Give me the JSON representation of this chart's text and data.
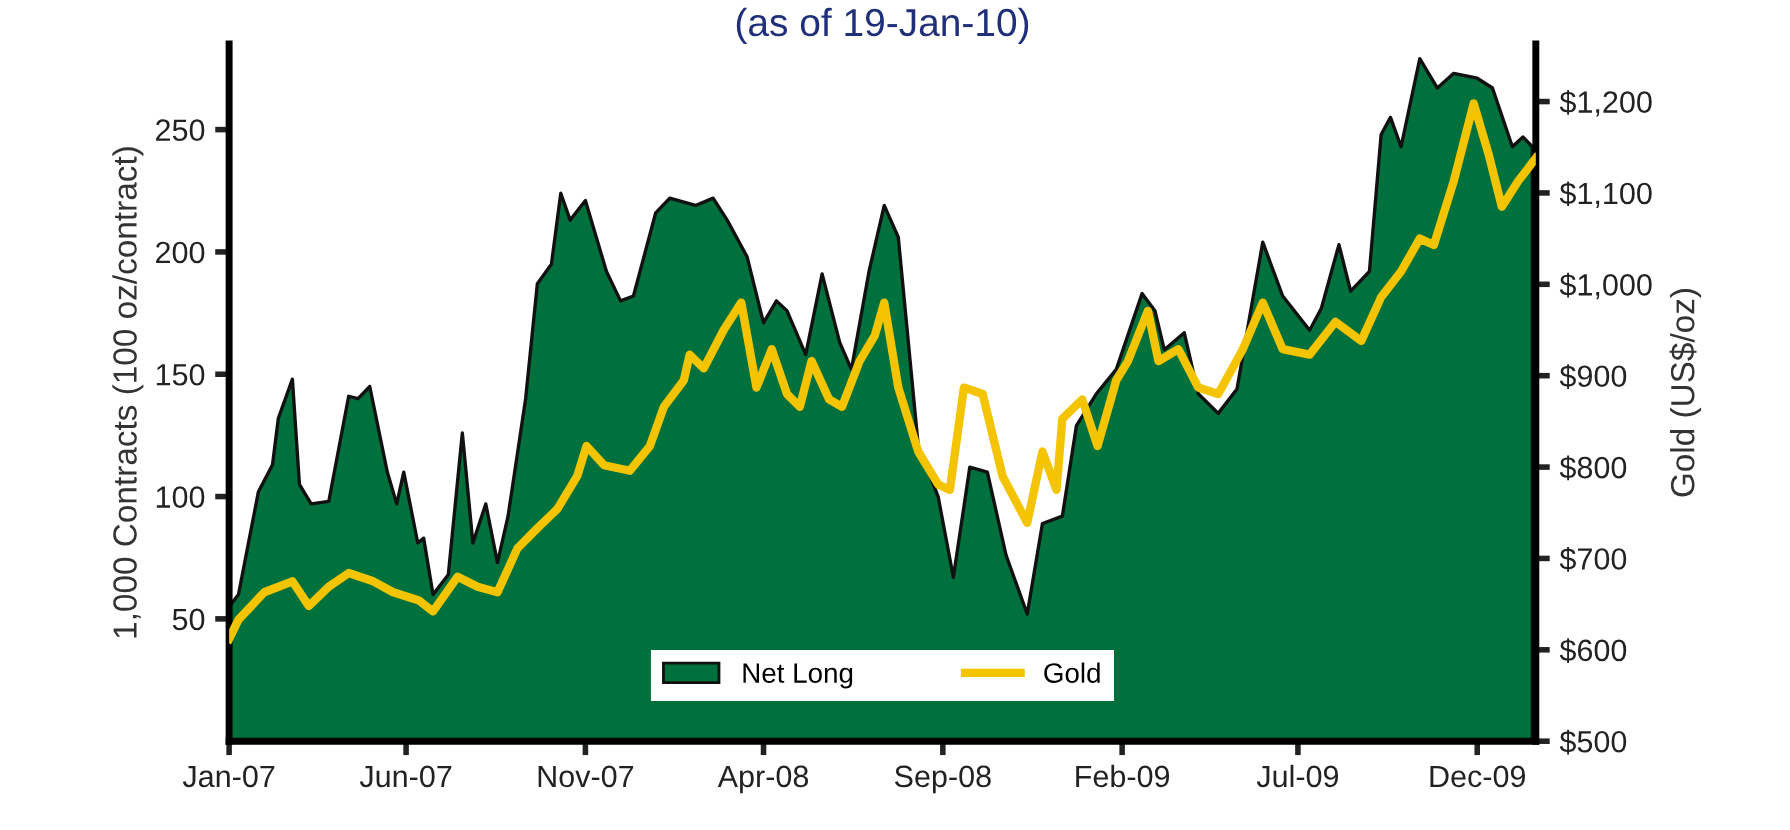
{
  "chart_data": {
    "type": "area",
    "title": "(as of 19-Jan-10)",
    "ylabel": "1,000 Contracts (100 oz/contract)",
    "y2label": "Gold (US$/oz)",
    "ylim": [
      0,
      285
    ],
    "yticks": [
      50,
      100,
      150,
      200,
      250
    ],
    "y2lim": [
      500,
      1263
    ],
    "y2ticks": [
      {
        "value": 500,
        "label": "$500"
      },
      {
        "value": 600,
        "label": "$600"
      },
      {
        "value": 700,
        "label": "$700"
      },
      {
        "value": 800,
        "label": "$800"
      },
      {
        "value": 900,
        "label": "$900"
      },
      {
        "value": 1000,
        "label": "$1,000"
      },
      {
        "value": 1100,
        "label": "$1,100"
      },
      {
        "value": 1200,
        "label": "$1,200"
      }
    ],
    "xlim": [
      "2007-01-01",
      "2010-01-20"
    ],
    "xticks": [
      {
        "value": "2007-01-01",
        "label": "Jan-07"
      },
      {
        "value": "2007-06-01",
        "label": "Jun-07"
      },
      {
        "value": "2007-11-01",
        "label": "Nov-07"
      },
      {
        "value": "2008-04-01",
        "label": "Apr-08"
      },
      {
        "value": "2008-09-01",
        "label": "Sep-08"
      },
      {
        "value": "2009-02-01",
        "label": "Feb-09"
      },
      {
        "value": "2009-07-01",
        "label": "Jul-09"
      },
      {
        "value": "2009-12-01",
        "label": "Dec-09"
      }
    ],
    "legend": "bottom",
    "grid": false,
    "series": [
      {
        "name": "Net Long",
        "color": "#00703c",
        "x": [
          "2007-01-01",
          "2007-01-09",
          "2007-01-26",
          "2007-02-07",
          "2007-02-12",
          "2007-02-24",
          "2007-03-02",
          "2007-03-12",
          "2007-03-27",
          "2007-04-13",
          "2007-04-21",
          "2007-05-01",
          "2007-05-16",
          "2007-05-24",
          "2007-05-30",
          "2007-06-11",
          "2007-06-16",
          "2007-06-24",
          "2007-07-07",
          "2007-07-19",
          "2007-07-28",
          "2007-08-08",
          "2007-08-18",
          "2007-08-27",
          "2007-09-11",
          "2007-09-21",
          "2007-10-03",
          "2007-10-11",
          "2007-10-19",
          "2007-11-01",
          "2007-11-19",
          "2007-12-01",
          "2007-12-12",
          "2007-12-31",
          "2008-01-12",
          "2008-02-03",
          "2008-02-18",
          "2008-03-01",
          "2008-03-18",
          "2008-04-01",
          "2008-04-12",
          "2008-04-21",
          "2008-05-07",
          "2008-05-21",
          "2008-06-05",
          "2008-06-15",
          "2008-06-30",
          "2008-07-13",
          "2008-07-25",
          "2008-08-11",
          "2008-08-28",
          "2008-09-10",
          "2008-09-24",
          "2008-10-09",
          "2008-10-25",
          "2008-11-12",
          "2008-11-25",
          "2008-12-12",
          "2008-12-24",
          "2009-01-10",
          "2009-01-27",
          "2009-02-18",
          "2009-03-01",
          "2009-03-09",
          "2009-03-26",
          "2009-04-07",
          "2009-04-24",
          "2009-05-10",
          "2009-06-01",
          "2009-06-18",
          "2009-07-11",
          "2009-07-21",
          "2009-08-05",
          "2009-08-15",
          "2009-08-31",
          "2009-09-10",
          "2009-09-18",
          "2009-09-27",
          "2009-10-13",
          "2009-10-28",
          "2009-11-11",
          "2009-12-01",
          "2009-12-14",
          "2009-12-31",
          "2010-01-09",
          "2010-01-17"
        ],
        "values": [
          55,
          60,
          102,
          113,
          132,
          148,
          105,
          97,
          98,
          141,
          140,
          145,
          110,
          97,
          110,
          81,
          83,
          60,
          68,
          126,
          81,
          97,
          73,
          92,
          140,
          187,
          195,
          224,
          213,
          221,
          192,
          180,
          182,
          216,
          222,
          219,
          222,
          213,
          198,
          171,
          180,
          176,
          158,
          191,
          163,
          152,
          192,
          219,
          206,
          121,
          100,
          67,
          112,
          110,
          76,
          52,
          89,
          92,
          129,
          142,
          152,
          183,
          176,
          160,
          167,
          142,
          134,
          144,
          204,
          182,
          168,
          177,
          203,
          184,
          192,
          248,
          255,
          243,
          279,
          267,
          273,
          271,
          267,
          243,
          247,
          243
        ]
      },
      {
        "name": "Gold",
        "type": "line",
        "axis": "y2",
        "color": "#f5c400",
        "x": [
          "2007-01-01",
          "2007-01-09",
          "2007-01-31",
          "2007-02-24",
          "2007-03-10",
          "2007-03-27",
          "2007-04-13",
          "2007-05-04",
          "2007-05-21",
          "2007-06-12",
          "2007-06-24",
          "2007-07-15",
          "2007-08-01",
          "2007-08-18",
          "2007-09-04",
          "2007-09-21",
          "2007-10-08",
          "2007-10-25",
          "2007-11-02",
          "2007-11-17",
          "2007-12-09",
          "2007-12-26",
          "2008-01-07",
          "2008-01-24",
          "2008-01-29",
          "2008-02-10",
          "2008-02-27",
          "2008-03-13",
          "2008-03-26",
          "2008-04-08",
          "2008-04-21",
          "2008-05-02",
          "2008-05-12",
          "2008-05-27",
          "2008-06-07",
          "2008-06-22",
          "2008-07-05",
          "2008-07-13",
          "2008-07-25",
          "2008-08-11",
          "2008-08-28",
          "2008-09-07",
          "2008-09-19",
          "2008-10-05",
          "2008-10-22",
          "2008-11-12",
          "2008-11-25",
          "2008-12-07",
          "2008-12-12",
          "2008-12-29",
          "2009-01-11",
          "2009-01-27",
          "2009-02-06",
          "2009-02-23",
          "2009-03-04",
          "2009-03-21",
          "2009-04-07",
          "2009-04-24",
          "2009-05-15",
          "2009-06-01",
          "2009-06-18",
          "2009-07-11",
          "2009-08-02",
          "2009-08-24",
          "2009-09-10",
          "2009-09-27",
          "2009-10-13",
          "2009-10-25",
          "2009-11-11",
          "2009-11-28",
          "2009-12-11",
          "2009-12-22",
          "2010-01-05",
          "2010-01-20"
        ],
        "values": [
          612,
          633,
          663,
          675,
          648,
          669,
          684,
          675,
          663,
          654,
          642,
          680,
          669,
          663,
          711,
          733,
          754,
          790,
          823,
          802,
          796,
          823,
          866,
          895,
          923,
          908,
          950,
          980,
          887,
          929,
          880,
          866,
          916,
          874,
          866,
          916,
          944,
          980,
          887,
          817,
          781,
          775,
          887,
          880,
          790,
          739,
          817,
          775,
          853,
          874,
          823,
          895,
          916,
          971,
          916,
          929,
          887,
          880,
          929,
          980,
          929,
          923,
          959,
          938,
          986,
          1014,
          1050,
          1043,
          1113,
          1198,
          1141,
          1085,
          1113,
          1138
        ]
      }
    ]
  }
}
